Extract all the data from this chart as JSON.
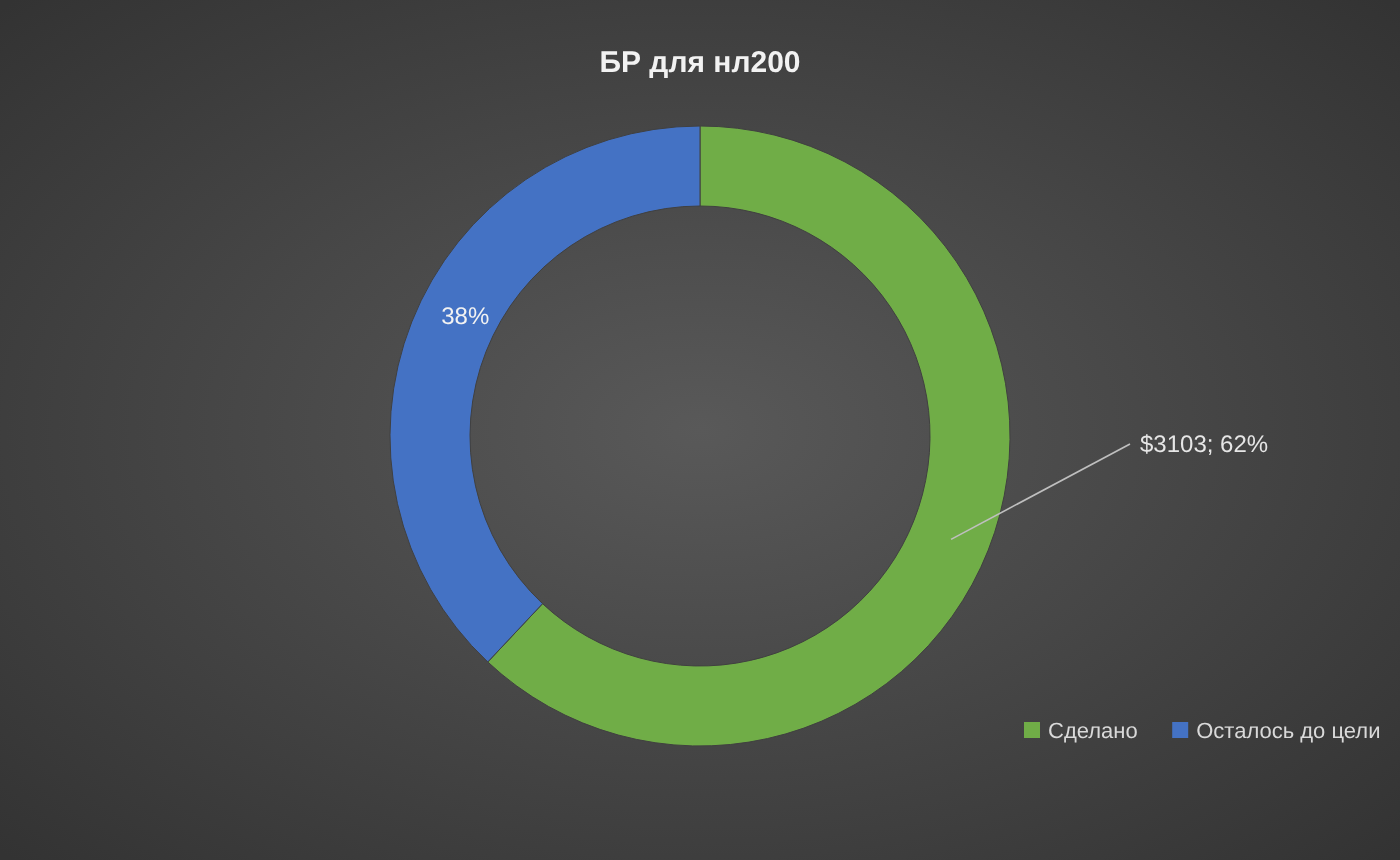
{
  "chart_data": {
    "type": "donut",
    "title": "БР для нл200",
    "categories": [
      "Сделано",
      "Осталось до цели"
    ],
    "values": [
      62,
      38
    ],
    "colors": [
      "#70ad47",
      "#4472c4"
    ],
    "value_labels": [
      "$3103; 62%",
      "38%"
    ],
    "legend": "bottom right"
  }
}
